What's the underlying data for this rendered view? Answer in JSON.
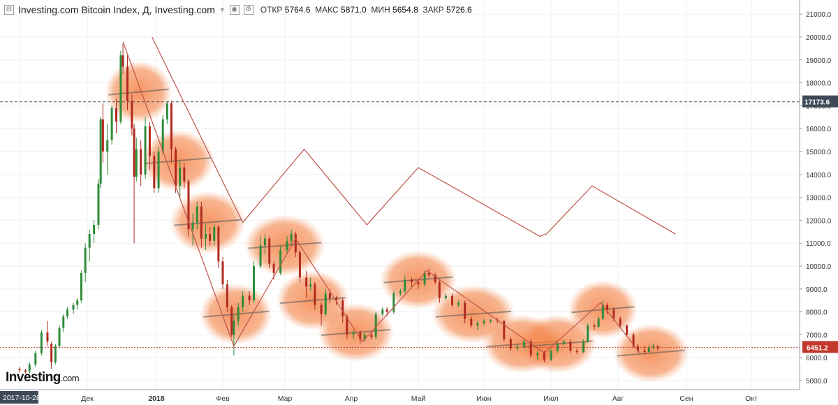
{
  "header": {
    "collapse_symbol": "⊟",
    "title": "Investing.com Bitcoin Index, Д, Investing.com",
    "dropdown_icon": "chevron-down-icon",
    "open_label": "ОТКР",
    "open_value": "5764.6",
    "high_label": "МАКС",
    "high_value": "5871.0",
    "low_label": "МИН",
    "low_value": "5654.8",
    "close_label": "ЗАКР",
    "close_value": "5726.6"
  },
  "logo": {
    "main": "Investing",
    "suffix": ".com"
  },
  "colors": {
    "up": "#2e8b3a",
    "down": "#b02a1f",
    "price_line": "#c0392b",
    "overlay": "#f07a3c",
    "crosshair": "#555555"
  },
  "chart_data": {
    "type": "candlestick",
    "title": "Investing.com Bitcoin Index",
    "y_ticks": [
      5000,
      6000,
      7000,
      8000,
      9000,
      10000,
      11000,
      12000,
      13000,
      14000,
      15000,
      16000,
      17000,
      18000,
      19000,
      20000,
      21000
    ],
    "ylim": [
      4500,
      21500
    ],
    "x_range": [
      "2017-10-28",
      "2018-10-15"
    ],
    "x_ticks": [
      {
        "label": "2017-10-28",
        "date": "2017-10-28",
        "highlight": true
      },
      {
        "label": "Дек",
        "date": "2017-12-01"
      },
      {
        "label": "2018",
        "date": "2018-01-01",
        "bold": true
      },
      {
        "label": "Фев",
        "date": "2018-02-01"
      },
      {
        "label": "Мар",
        "date": "2018-03-01"
      },
      {
        "label": "Апр",
        "date": "2018-04-01"
      },
      {
        "label": "Май",
        "date": "2018-05-01"
      },
      {
        "label": "Июн",
        "date": "2018-06-01"
      },
      {
        "label": "Июл",
        "date": "2018-07-01"
      },
      {
        "label": "Авг",
        "date": "2018-08-01"
      },
      {
        "label": "Сен",
        "date": "2018-09-01"
      },
      {
        "label": "Окт",
        "date": "2018-10-01"
      }
    ],
    "last_price": {
      "label": "6451.2",
      "value": 6451.2
    },
    "crosshair": {
      "label": "17173.6",
      "value": 17173.6
    },
    "trend_line": [
      {
        "date": "2017-12-17",
        "y": 19800
      },
      {
        "date": "2018-02-06",
        "y": 6500
      },
      {
        "date": "2018-03-06",
        "y": 11200
      },
      {
        "date": "2018-04-06",
        "y": 6700
      },
      {
        "date": "2018-05-05",
        "y": 9800
      },
      {
        "date": "2018-06-28",
        "y": 6200
      },
      {
        "date": "2018-07-24",
        "y": 8400
      },
      {
        "date": "2018-08-11",
        "y": 6200
      }
    ],
    "projection_line": [
      {
        "date": "2017-12-30",
        "y": 20000
      },
      {
        "date": "2018-02-10",
        "y": 11900
      },
      {
        "date": "2018-03-10",
        "y": 15100
      },
      {
        "date": "2018-04-08",
        "y": 11800
      },
      {
        "date": "2018-05-01",
        "y": 14300
      },
      {
        "date": "2018-06-26",
        "y": 11300
      },
      {
        "date": "2018-06-29",
        "y": 11400
      },
      {
        "date": "2018-07-20",
        "y": 13500
      },
      {
        "date": "2018-08-27",
        "y": 11400
      }
    ],
    "highlight_zones": [
      {
        "date": "2017-12-24",
        "y": 17600,
        "rx": 48,
        "ry": 45
      },
      {
        "date": "2018-01-11",
        "y": 14600,
        "rx": 52,
        "ry": 44
      },
      {
        "date": "2018-01-25",
        "y": 11900,
        "rx": 54,
        "ry": 45
      },
      {
        "date": "2018-02-07",
        "y": 7900,
        "rx": 52,
        "ry": 44
      },
      {
        "date": "2018-03-01",
        "y": 10900,
        "rx": 58,
        "ry": 44
      },
      {
        "date": "2018-03-14",
        "y": 8500,
        "rx": 52,
        "ry": 43
      },
      {
        "date": "2018-04-03",
        "y": 7100,
        "rx": 55,
        "ry": 42
      },
      {
        "date": "2018-05-01",
        "y": 9400,
        "rx": 55,
        "ry": 42
      },
      {
        "date": "2018-05-27",
        "y": 7900,
        "rx": 60,
        "ry": 42
      },
      {
        "date": "2018-06-18",
        "y": 6600,
        "rx": 56,
        "ry": 42
      },
      {
        "date": "2018-07-04",
        "y": 6600,
        "rx": 56,
        "ry": 42
      },
      {
        "date": "2018-07-25",
        "y": 8100,
        "rx": 50,
        "ry": 42
      },
      {
        "date": "2018-08-16",
        "y": 6200,
        "rx": 54,
        "ry": 42
      }
    ],
    "candles": [
      [
        "2017-10-28",
        5500,
        5600,
        5350,
        5450
      ],
      [
        "2017-10-31",
        5450,
        5500,
        5300,
        5380
      ],
      [
        "2017-11-02",
        5400,
        5800,
        5300,
        5700
      ],
      [
        "2017-11-05",
        5700,
        6300,
        5600,
        6200
      ],
      [
        "2017-11-08",
        6200,
        7200,
        6100,
        7100
      ],
      [
        "2017-11-11",
        7100,
        7600,
        6500,
        6700
      ],
      [
        "2017-11-13",
        6600,
        6700,
        5500,
        5800
      ],
      [
        "2017-11-15",
        5800,
        6600,
        5700,
        6500
      ],
      [
        "2017-11-17",
        6500,
        7400,
        6400,
        7300
      ],
      [
        "2017-11-19",
        7300,
        7900,
        7100,
        7800
      ],
      [
        "2017-11-21",
        7800,
        8200,
        7700,
        8100
      ],
      [
        "2017-11-24",
        8100,
        8400,
        7900,
        8300
      ],
      [
        "2017-11-26",
        8300,
        8600,
        8100,
        8500
      ],
      [
        "2017-11-28",
        8500,
        9800,
        8400,
        9700
      ],
      [
        "2017-11-30",
        9700,
        11000,
        9300,
        10800
      ],
      [
        "2017-12-02",
        10800,
        11600,
        10200,
        11400
      ],
      [
        "2017-12-04",
        11400,
        12000,
        11000,
        11800
      ],
      [
        "2017-12-06",
        11800,
        13800,
        11600,
        13600
      ],
      [
        "2017-12-07",
        13600,
        16500,
        13400,
        16400
      ],
      [
        "2017-12-08",
        16400,
        17100,
        14500,
        15000
      ],
      [
        "2017-12-10",
        15000,
        16200,
        14000,
        15500
      ],
      [
        "2017-12-12",
        15500,
        17000,
        15300,
        16900
      ],
      [
        "2017-12-14",
        16900,
        17300,
        15800,
        16300
      ],
      [
        "2017-12-16",
        16300,
        19400,
        16200,
        19200
      ],
      [
        "2017-12-17",
        19200,
        19700,
        18400,
        18700
      ],
      [
        "2017-12-19",
        18700,
        19200,
        16800,
        17200
      ],
      [
        "2017-12-21",
        17200,
        17500,
        15700,
        16000
      ],
      [
        "2017-12-22",
        16000,
        16200,
        11000,
        13900
      ],
      [
        "2017-12-23",
        13900,
        15600,
        13700,
        15100
      ],
      [
        "2017-12-25",
        15100,
        15500,
        13500,
        14000
      ],
      [
        "2017-12-27",
        14000,
        16500,
        13800,
        16100
      ],
      [
        "2017-12-29",
        16100,
        16300,
        14200,
        14800
      ],
      [
        "2017-12-31",
        14800,
        15000,
        13200,
        13400
      ],
      [
        "2018-01-02",
        13400,
        15200,
        13200,
        15000
      ],
      [
        "2018-01-04",
        15000,
        16600,
        14900,
        16400
      ],
      [
        "2018-01-06",
        16400,
        17200,
        16200,
        17100
      ],
      [
        "2018-01-08",
        17100,
        17200,
        14500,
        15100
      ],
      [
        "2018-01-10",
        15100,
        15200,
        13200,
        13500
      ],
      [
        "2018-01-12",
        13500,
        14600,
        13000,
        14300
      ],
      [
        "2018-01-14",
        14300,
        14500,
        13400,
        13700
      ],
      [
        "2018-01-16",
        13700,
        13800,
        11300,
        11600
      ],
      [
        "2018-01-18",
        11600,
        12300,
        10900,
        11900
      ],
      [
        "2018-01-20",
        11900,
        12800,
        11600,
        12600
      ],
      [
        "2018-01-22",
        12600,
        12800,
        10800,
        11200
      ],
      [
        "2018-01-24",
        11200,
        11800,
        10700,
        11400
      ],
      [
        "2018-01-26",
        11400,
        11700,
        10900,
        11100
      ],
      [
        "2018-01-28",
        11100,
        11800,
        10900,
        11700
      ],
      [
        "2018-01-30",
        11700,
        11800,
        9900,
        10200
      ],
      [
        "2018-02-01",
        10200,
        10400,
        9000,
        9200
      ],
      [
        "2018-02-03",
        9200,
        9400,
        8000,
        8200
      ],
      [
        "2018-02-05",
        8200,
        8300,
        6900,
        7000
      ],
      [
        "2018-02-06",
        7000,
        7900,
        6100,
        7600
      ],
      [
        "2018-02-08",
        7600,
        8400,
        7400,
        8200
      ],
      [
        "2018-02-10",
        8200,
        8900,
        8000,
        8700
      ],
      [
        "2018-02-13",
        8700,
        8900,
        8300,
        8500
      ],
      [
        "2018-02-15",
        8500,
        10200,
        8400,
        10000
      ],
      [
        "2018-02-18",
        10000,
        11300,
        9900,
        10900
      ],
      [
        "2018-02-20",
        10900,
        11400,
        10500,
        11200
      ],
      [
        "2018-02-22",
        11200,
        11300,
        9900,
        10100
      ],
      [
        "2018-02-24",
        10100,
        10200,
        9400,
        9700
      ],
      [
        "2018-02-27",
        9700,
        10900,
        9600,
        10700
      ],
      [
        "2018-03-02",
        10700,
        11300,
        10500,
        11100
      ],
      [
        "2018-03-04",
        11100,
        11600,
        10900,
        11400
      ],
      [
        "2018-03-06",
        11400,
        11500,
        10400,
        10600
      ],
      [
        "2018-03-08",
        10600,
        10700,
        9300,
        9500
      ],
      [
        "2018-03-11",
        9500,
        9800,
        8600,
        9100
      ],
      [
        "2018-03-13",
        9100,
        9500,
        8900,
        9200
      ],
      [
        "2018-03-15",
        9200,
        9300,
        8100,
        8300
      ],
      [
        "2018-03-18",
        8300,
        8400,
        7400,
        7900
      ],
      [
        "2018-03-20",
        7900,
        9000,
        7800,
        8800
      ],
      [
        "2018-03-22",
        8800,
        9000,
        8400,
        8600
      ],
      [
        "2018-03-25",
        8600,
        8700,
        8300,
        8500
      ],
      [
        "2018-03-28",
        8500,
        8600,
        7500,
        7800
      ],
      [
        "2018-03-30",
        7800,
        7900,
        6800,
        7000
      ],
      [
        "2018-04-02",
        7000,
        7200,
        6800,
        7100
      ],
      [
        "2018-04-05",
        7100,
        7200,
        6600,
        6800
      ],
      [
        "2018-04-07",
        6800,
        7100,
        6700,
        7000
      ],
      [
        "2018-04-10",
        7000,
        7100,
        6800,
        6900
      ],
      [
        "2018-04-12",
        6900,
        8000,
        6800,
        7900
      ],
      [
        "2018-04-15",
        7900,
        8200,
        7800,
        8100
      ],
      [
        "2018-04-17",
        8100,
        8200,
        7800,
        8000
      ],
      [
        "2018-04-20",
        8000,
        8900,
        7900,
        8800
      ],
      [
        "2018-04-23",
        8800,
        9000,
        8700,
        8900
      ],
      [
        "2018-04-25",
        8900,
        9600,
        8800,
        9400
      ],
      [
        "2018-04-28",
        9400,
        9500,
        9100,
        9300
      ],
      [
        "2018-05-01",
        9300,
        9400,
        9000,
        9200
      ],
      [
        "2018-05-04",
        9200,
        9800,
        9100,
        9700
      ],
      [
        "2018-05-06",
        9700,
        9900,
        9500,
        9600
      ],
      [
        "2018-05-09",
        9600,
        9700,
        9200,
        9300
      ],
      [
        "2018-05-11",
        9300,
        9400,
        8400,
        8600
      ],
      [
        "2018-05-14",
        8600,
        8800,
        8500,
        8700
      ],
      [
        "2018-05-17",
        8700,
        8800,
        8200,
        8300
      ],
      [
        "2018-05-20",
        8300,
        8500,
        8200,
        8400
      ],
      [
        "2018-05-23",
        8400,
        8500,
        7500,
        7700
      ],
      [
        "2018-05-26",
        7700,
        7800,
        7300,
        7400
      ],
      [
        "2018-05-29",
        7400,
        7600,
        7200,
        7500
      ],
      [
        "2018-06-01",
        7500,
        7700,
        7400,
        7600
      ],
      [
        "2018-06-04",
        7600,
        7700,
        7500,
        7650
      ],
      [
        "2018-06-07",
        7650,
        7750,
        7500,
        7600
      ],
      [
        "2018-06-10",
        7600,
        7650,
        6700,
        6800
      ],
      [
        "2018-06-13",
        6800,
        6900,
        6300,
        6400
      ],
      [
        "2018-06-16",
        6400,
        6600,
        6300,
        6500
      ],
      [
        "2018-06-19",
        6500,
        6800,
        6400,
        6700
      ],
      [
        "2018-06-22",
        6700,
        6800,
        6000,
        6100
      ],
      [
        "2018-06-25",
        6100,
        6300,
        5900,
        6200
      ],
      [
        "2018-06-28",
        6200,
        6300,
        5800,
        5900
      ],
      [
        "2018-07-01",
        5900,
        6400,
        5850,
        6300
      ],
      [
        "2018-07-04",
        6300,
        6700,
        6200,
        6600
      ],
      [
        "2018-07-07",
        6600,
        6800,
        6500,
        6700
      ],
      [
        "2018-07-10",
        6700,
        6800,
        6200,
        6300
      ],
      [
        "2018-07-13",
        6300,
        6400,
        6150,
        6250
      ],
      [
        "2018-07-16",
        6250,
        6800,
        6200,
        6700
      ],
      [
        "2018-07-18",
        6700,
        7500,
        6650,
        7400
      ],
      [
        "2018-07-21",
        7400,
        7500,
        7200,
        7350
      ],
      [
        "2018-07-23",
        7350,
        7800,
        7300,
        7700
      ],
      [
        "2018-07-25",
        7700,
        8500,
        7650,
        8300
      ],
      [
        "2018-07-27",
        8300,
        8400,
        7900,
        8100
      ],
      [
        "2018-07-30",
        8100,
        8200,
        7600,
        7700
      ],
      [
        "2018-08-02",
        7700,
        7800,
        7300,
        7400
      ],
      [
        "2018-08-05",
        7400,
        7450,
        6900,
        7000
      ],
      [
        "2018-08-08",
        7000,
        7100,
        6400,
        6500
      ],
      [
        "2018-08-10",
        6500,
        6600,
        6200,
        6300
      ],
      [
        "2018-08-13",
        6300,
        6500,
        6150,
        6250
      ],
      [
        "2018-08-15",
        6250,
        6550,
        6200,
        6450
      ],
      [
        "2018-08-17",
        6450,
        6600,
        6350,
        6500
      ],
      [
        "2018-08-19",
        6500,
        6550,
        6300,
        6400
      ]
    ]
  }
}
